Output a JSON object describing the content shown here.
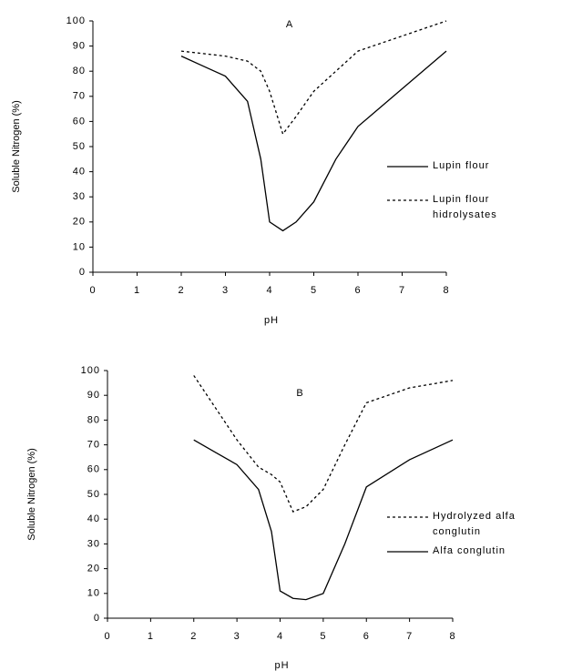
{
  "chart_data": [
    {
      "type": "line",
      "title": "A",
      "xlabel": "pH",
      "ylabel": "Soluble Nitrogen (%)",
      "x": [
        2,
        2.5,
        3,
        3.5,
        3.8,
        4,
        4.3,
        4.6,
        5,
        5.5,
        6,
        7,
        8
      ],
      "series": [
        {
          "name": "Lupin flour",
          "color": "#000000",
          "linestyle": "solid",
          "values": [
            86,
            82,
            78,
            68,
            45,
            20,
            16.5,
            20,
            28,
            45,
            58,
            73,
            88
          ]
        },
        {
          "name": "Lupin flour hidrolysates",
          "color": "#000000",
          "linestyle": "dotted",
          "values": [
            88,
            87,
            86,
            84,
            80,
            72,
            55,
            62,
            72,
            80,
            88,
            94,
            100
          ]
        }
      ],
      "xlim": [
        0,
        8
      ],
      "xticks": [
        0,
        1,
        2,
        3,
        4,
        5,
        6,
        7,
        8
      ],
      "ylim": [
        0,
        100
      ],
      "yticks": [
        0,
        10,
        20,
        30,
        40,
        50,
        60,
        70,
        80,
        90,
        100
      ]
    },
    {
      "type": "line",
      "title": "B",
      "xlabel": "pH",
      "ylabel": "Soluble Nitrogen (%)",
      "x": [
        2,
        2.5,
        3,
        3.5,
        3.8,
        4,
        4.3,
        4.6,
        5,
        5.5,
        6,
        7,
        8
      ],
      "series": [
        {
          "name": "Hydrolyzed alfa conglutin",
          "color": "#000000",
          "linestyle": "dotted",
          "values": [
            98,
            85,
            72,
            61,
            58,
            55,
            43,
            45,
            52,
            70,
            87,
            93,
            96
          ]
        },
        {
          "name": "Alfa conglutin",
          "color": "#000000",
          "linestyle": "solid",
          "values": [
            72,
            67,
            62,
            52,
            35,
            11,
            8,
            7.5,
            10,
            30,
            53,
            64,
            72
          ]
        }
      ],
      "xlim": [
        0,
        8
      ],
      "xticks": [
        0,
        1,
        2,
        3,
        4,
        5,
        6,
        7,
        8
      ],
      "ylim": [
        0,
        100
      ],
      "yticks": [
        0,
        10,
        20,
        30,
        40,
        50,
        60,
        70,
        80,
        90,
        100
      ]
    }
  ]
}
